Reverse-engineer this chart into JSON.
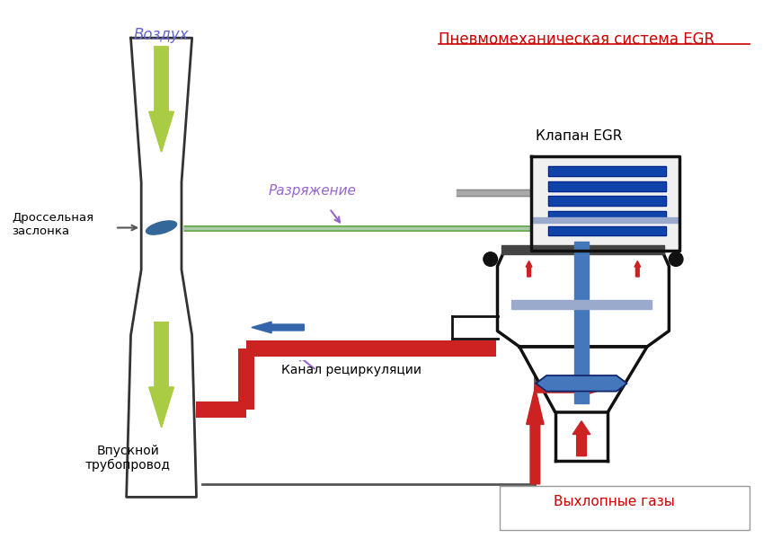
{
  "title": "Пневмомеханическая система EGR",
  "title_color": "#cc0000",
  "label_vozdukh": "Воздух",
  "label_vozdukh_color": "#6666cc",
  "label_drosself": "Дроссельная\nзаслонка",
  "label_drosself_color": "#000000",
  "label_razryazhenie": "Разряжение",
  "label_razryazhenie_color": "#9966cc",
  "label_klapan": "Клапан EGR",
  "label_klapan_color": "#000000",
  "label_kanal": "Канал рециркуляции",
  "label_kanal_color": "#000000",
  "label_vpusknoy": "Впускной\nтрубопровод",
  "label_vpusknoy_color": "#000000",
  "label_vykhlopnye": "Выхлопные газы",
  "label_vykhlopnye_color": "#cc0000",
  "bg_color": "#ffffff",
  "throttle_color": "#336699",
  "vacuum_line_color": "#66aa44",
  "vacuum_line_color2": "#aaccaa",
  "arrow_air_color": "#aacc44",
  "arrow_exhaust_color": "#cc2222",
  "arrow_blue_color": "#3366aa",
  "egr_spring_color": "#1144aa",
  "egr_internal_color": "#4477bb"
}
